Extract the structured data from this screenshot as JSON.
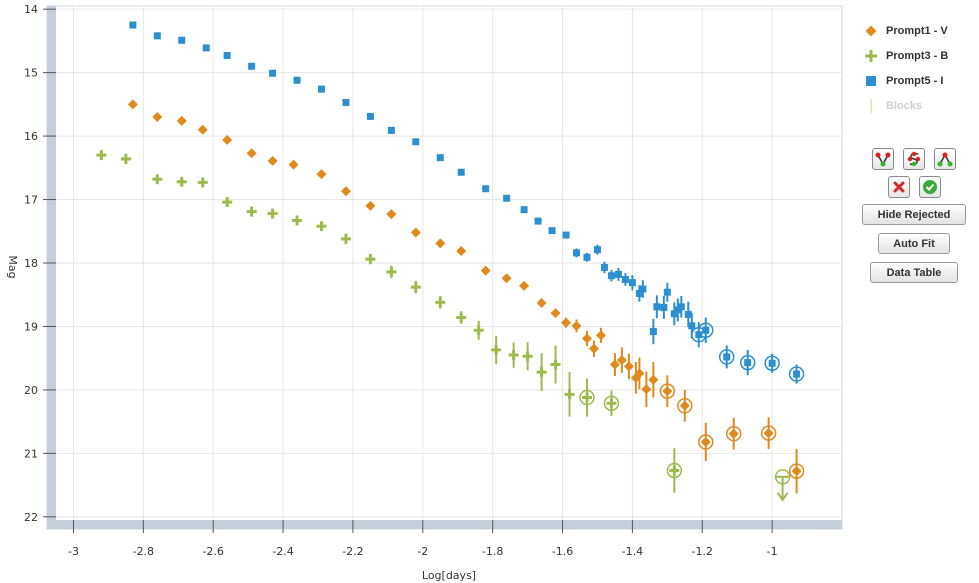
{
  "chart_data": {
    "type": "scatter",
    "xlabel": "Log[days]",
    "ylabel": "Mag",
    "xlim": [
      -3.05,
      -0.8
    ],
    "ylim": [
      22.05,
      13.95
    ],
    "y_inverted": true,
    "grid": true,
    "legend_position": "right",
    "xticks": [
      -3,
      -2.8,
      -2.6,
      -2.4,
      -2.2,
      -2,
      -1.8,
      -1.6,
      -1.4,
      -1.2,
      -1
    ],
    "xtick_labels": [
      "-3",
      "-2.8",
      "-2.6",
      "-2.4",
      "-2.2",
      "-2",
      "-1.8",
      "-1.6",
      "-1.4",
      "-1.2",
      "-1"
    ],
    "yticks": [
      14,
      15,
      16,
      17,
      18,
      19,
      20,
      21,
      22
    ],
    "ytick_labels": [
      "14",
      "15",
      "16",
      "17",
      "18",
      "19",
      "20",
      "21",
      "22"
    ],
    "series": [
      {
        "name": "Prompt5 - I",
        "color": "#2b8fd0",
        "marker": "square",
        "points": [
          [
            -2.83,
            14.25,
            0
          ],
          [
            -2.76,
            14.42,
            0
          ],
          [
            -2.69,
            14.49,
            0
          ],
          [
            -2.62,
            14.61,
            0
          ],
          [
            -2.56,
            14.73,
            0
          ],
          [
            -2.49,
            14.9,
            0
          ],
          [
            -2.43,
            15.01,
            0
          ],
          [
            -2.36,
            15.12,
            0
          ],
          [
            -2.29,
            15.26,
            0
          ],
          [
            -2.22,
            15.47,
            0
          ],
          [
            -2.15,
            15.69,
            0
          ],
          [
            -2.09,
            15.91,
            0
          ],
          [
            -2.02,
            16.09,
            0
          ],
          [
            -1.95,
            16.34,
            0
          ],
          [
            -1.89,
            16.57,
            0
          ],
          [
            -1.82,
            16.83,
            0
          ],
          [
            -1.76,
            16.98,
            0
          ],
          [
            -1.71,
            17.16,
            0
          ],
          [
            -1.67,
            17.34,
            0
          ],
          [
            -1.63,
            17.49,
            0
          ],
          [
            -1.59,
            17.56,
            0
          ],
          [
            -1.56,
            17.84,
            0.07
          ],
          [
            -1.53,
            17.91,
            0.07
          ],
          [
            -1.5,
            17.79,
            0.08
          ],
          [
            -1.48,
            18.07,
            0.09
          ],
          [
            -1.46,
            18.2,
            0.09
          ],
          [
            -1.44,
            18.18,
            0.1
          ],
          [
            -1.42,
            18.26,
            0.1
          ],
          [
            -1.4,
            18.31,
            0.12
          ],
          [
            -1.38,
            18.48,
            0.13
          ],
          [
            -1.37,
            18.41,
            0.14
          ],
          [
            -1.34,
            19.08,
            0.2
          ],
          [
            -1.33,
            18.69,
            0.18
          ],
          [
            -1.31,
            18.7,
            0.18
          ],
          [
            -1.3,
            18.46,
            0.15
          ],
          [
            -1.28,
            18.8,
            0.18
          ],
          [
            -1.27,
            18.74,
            0.18
          ],
          [
            -1.26,
            18.69,
            0.17
          ],
          [
            -1.24,
            18.81,
            0.2
          ],
          [
            -1.23,
            18.99,
            0.2
          ],
          [
            -1.21,
            19.13,
            0.2
          ],
          [
            -1.19,
            19.06,
            0.2
          ],
          [
            -1.13,
            19.48,
            0.18
          ],
          [
            -1.07,
            19.57,
            0.2
          ],
          [
            -1,
            19.58,
            0.15
          ],
          [
            -0.93,
            19.75,
            0.15
          ]
        ]
      },
      {
        "name": "Prompt1 - V",
        "color": "#e08a1e",
        "marker": "diamond",
        "points": [
          [
            -2.83,
            15.5,
            0
          ],
          [
            -2.76,
            15.7,
            0
          ],
          [
            -2.69,
            15.76,
            0
          ],
          [
            -2.63,
            15.9,
            0
          ],
          [
            -2.56,
            16.06,
            0
          ],
          [
            -2.49,
            16.27,
            0
          ],
          [
            -2.43,
            16.39,
            0
          ],
          [
            -2.37,
            16.45,
            0
          ],
          [
            -2.29,
            16.6,
            0
          ],
          [
            -2.22,
            16.87,
            0
          ],
          [
            -2.15,
            17.1,
            0
          ],
          [
            -2.09,
            17.23,
            0
          ],
          [
            -2.02,
            17.52,
            0
          ],
          [
            -1.95,
            17.69,
            0
          ],
          [
            -1.89,
            17.81,
            0
          ],
          [
            -1.82,
            18.12,
            0
          ],
          [
            -1.76,
            18.24,
            0
          ],
          [
            -1.71,
            18.36,
            0
          ],
          [
            -1.66,
            18.63,
            0
          ],
          [
            -1.62,
            18.79,
            0
          ],
          [
            -1.59,
            18.94,
            0.08
          ],
          [
            -1.56,
            18.99,
            0.1
          ],
          [
            -1.53,
            19.19,
            0.12
          ],
          [
            -1.51,
            19.35,
            0.13
          ],
          [
            -1.49,
            19.14,
            0.12
          ],
          [
            -1.45,
            19.6,
            0.18
          ],
          [
            -1.43,
            19.53,
            0.2
          ],
          [
            -1.41,
            19.63,
            0.2
          ],
          [
            -1.39,
            19.81,
            0.25
          ],
          [
            -1.38,
            19.74,
            0.25
          ],
          [
            -1.36,
            19.99,
            0.28
          ],
          [
            -1.34,
            19.84,
            0.28
          ],
          [
            -1.3,
            20.02,
            0.25
          ],
          [
            -1.25,
            20.25,
            0.25
          ],
          [
            -1.19,
            20.82,
            0.3
          ],
          [
            -1.11,
            20.69,
            0.25
          ],
          [
            -1.01,
            20.68,
            0.25
          ],
          [
            -0.93,
            21.28,
            0.35
          ]
        ]
      },
      {
        "name": "Prompt3 - B",
        "color": "#9dbb4c",
        "marker": "plus",
        "points": [
          [
            -2.92,
            16.3,
            0.05
          ],
          [
            -2.85,
            16.36,
            0.08
          ],
          [
            -2.76,
            16.68,
            0.05
          ],
          [
            -2.69,
            16.72,
            0.06
          ],
          [
            -2.63,
            16.73,
            0.06
          ],
          [
            -2.56,
            17.04,
            0
          ],
          [
            -2.49,
            17.19,
            0.05
          ],
          [
            -2.43,
            17.22,
            0.05
          ],
          [
            -2.36,
            17.33,
            0.06
          ],
          [
            -2.29,
            17.42,
            0.06
          ],
          [
            -2.22,
            17.62,
            0.08
          ],
          [
            -2.15,
            17.94,
            0.08
          ],
          [
            -2.09,
            18.14,
            0.1
          ],
          [
            -2.02,
            18.38,
            0.1
          ],
          [
            -1.95,
            18.62,
            0.1
          ],
          [
            -1.89,
            18.86,
            0.1
          ],
          [
            -1.84,
            19.06,
            0.15
          ],
          [
            -1.79,
            19.37,
            0.22
          ],
          [
            -1.74,
            19.45,
            0.2
          ],
          [
            -1.7,
            19.47,
            0.22
          ],
          [
            -1.66,
            19.72,
            0.3
          ],
          [
            -1.62,
            19.6,
            0.3
          ],
          [
            -1.58,
            20.07,
            0.35
          ],
          [
            -1.53,
            20.12,
            0.3
          ],
          [
            -1.46,
            20.21,
            0.2
          ],
          [
            -1.28,
            21.27,
            0.35
          ]
        ]
      }
    ],
    "circled": {
      "Prompt5 - I": [
        -1.21,
        -1.19,
        -1.13,
        -1.07,
        -1,
        -0.93
      ],
      "Prompt1 - V": [
        -1.3,
        -1.25,
        -1.19,
        -1.11,
        -1.01,
        -0.93
      ],
      "Prompt3 - B": [
        -1.53,
        -1.46,
        -1.28
      ]
    },
    "upper_limits": [
      {
        "series": "Prompt3 - B",
        "x": -0.97,
        "y": 21.37
      }
    ]
  },
  "legend": {
    "items": [
      {
        "label": "Prompt1 - V",
        "color": "#e08a1e",
        "icon": "diamond-icon"
      },
      {
        "label": "Prompt3 - B",
        "color": "#9dbb4c",
        "icon": "plus-icon"
      },
      {
        "label": "Prompt5 - I",
        "color": "#2b8fd0",
        "icon": "square-icon"
      },
      {
        "label": "Blocks",
        "color": "#e8dfb0",
        "icon": "vertical-line-icon"
      }
    ]
  },
  "toolbar": {
    "hide_rejected": "Hide Rejected",
    "auto_fit": "Auto Fit",
    "data_table": "Data Table"
  }
}
